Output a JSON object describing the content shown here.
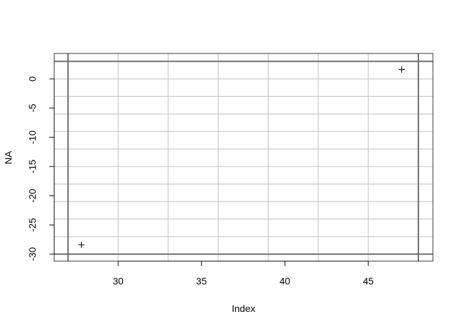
{
  "chart_data": {
    "type": "scatter",
    "title": "",
    "xlabel": "Index",
    "ylabel": "NA",
    "xlim": [
      26.17,
      48.87
    ],
    "ylim": [
      -31.2,
      4.35
    ],
    "x_ticks": [
      30,
      35,
      40,
      45
    ],
    "y_ticks": [
      0,
      -5,
      -10,
      -15,
      -20,
      -25,
      -30
    ],
    "x_tick_labels": [
      "30",
      "35",
      "40",
      "45"
    ],
    "y_tick_labels": [
      "0",
      "-5",
      "-10",
      "-15",
      "-20",
      "-25",
      "-30"
    ],
    "grid": true,
    "grid_x": [
      30,
      33,
      36,
      39,
      42,
      45
    ],
    "grid_y": [
      0,
      -3,
      -6,
      -9,
      -12,
      -15,
      -18,
      -21,
      -24,
      -27
    ],
    "reference_lines_x": [
      27,
      48
    ],
    "reference_lines_y": [
      3,
      -30
    ],
    "point_marker": "+",
    "points": [
      {
        "x": 27.8,
        "y": -28.4
      },
      {
        "x": 47.0,
        "y": 1.6
      }
    ],
    "colors": {
      "grid": "#bebebe",
      "reference": "#6b6b6b",
      "points": "#000000"
    }
  }
}
